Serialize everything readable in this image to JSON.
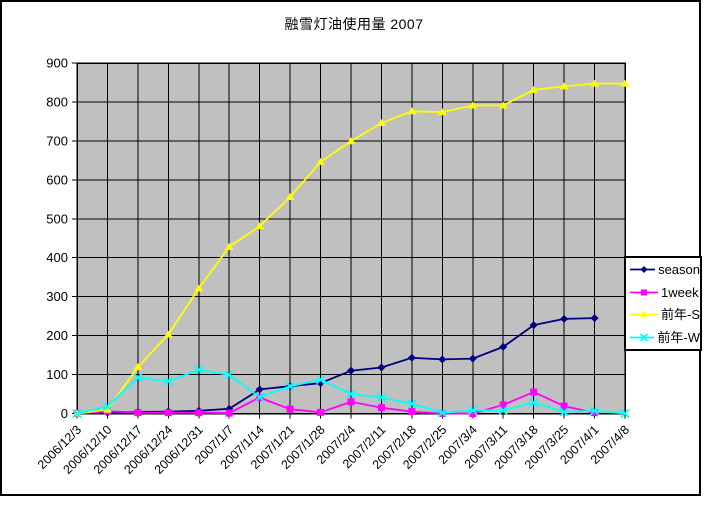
{
  "window": {
    "background": "#FFFFFF",
    "frame_border_color": "#000000"
  },
  "chart_data": {
    "type": "line",
    "title": "融雪灯油使用量 2007",
    "xlabel": "",
    "ylabel": "",
    "ylim": [
      0,
      900
    ],
    "ytick_step": 100,
    "grid": true,
    "plot_bg": "#C0C0C0",
    "gridline_color": "#000000",
    "legend_position": "right",
    "categories": [
      "2006/12/3",
      "2006/12/10",
      "2006/12/17",
      "2006/12/24",
      "2006/12/31",
      "2007/1/7",
      "2007/1/14",
      "2007/1/21",
      "2007/1/28",
      "2007/2/4",
      "2007/2/11",
      "2007/2/18",
      "2007/2/25",
      "2007/3/4",
      "2007/3/11",
      "2007/3/18",
      "2007/3/25",
      "2007/4/1",
      "2007/4/8"
    ],
    "series": [
      {
        "name": "season",
        "color": "#000080",
        "marker": "diamond",
        "values": [
          0,
          2,
          4,
          5,
          7,
          12,
          62,
          70,
          78,
          110,
          118,
          143,
          139,
          141,
          171,
          227,
          243,
          245,
          null
        ]
      },
      {
        "name": "1week",
        "color": "#FF00FF",
        "marker": "square",
        "values": [
          0,
          6,
          2,
          2,
          2,
          1,
          41,
          11,
          3,
          30,
          15,
          5,
          0,
          0,
          22,
          55,
          19,
          2,
          null
        ]
      },
      {
        "name": "前年-S",
        "color": "#FFFF00",
        "marker": "triangle",
        "values": [
          0,
          10,
          119,
          203,
          321,
          428,
          481,
          556,
          646,
          699,
          746,
          776,
          774,
          791,
          791,
          831,
          840,
          847,
          847
        ]
      },
      {
        "name": "前年-W",
        "color": "#00FFFF",
        "marker": "x",
        "values": [
          0,
          18,
          92,
          83,
          112,
          99,
          42,
          70,
          87,
          50,
          41,
          25,
          2,
          8,
          8,
          28,
          4,
          7,
          0
        ]
      }
    ]
  }
}
